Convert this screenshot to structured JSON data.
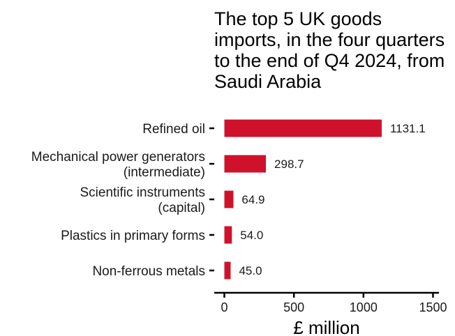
{
  "chart_data": {
    "type": "bar",
    "orientation": "horizontal",
    "title": "The top 5 UK goods imports, in the four quarters to the end of Q4 2024, from Saudi Arabia",
    "xlabel": "£ million",
    "ylabel": "",
    "categories": [
      [
        "Refined oil"
      ],
      [
        "Mechanical power generators",
        "(intermediate)"
      ],
      [
        "Scientific instruments",
        "(capital)"
      ],
      [
        "Plastics in primary forms"
      ],
      [
        "Non-ferrous metals"
      ]
    ],
    "values": [
      1131.1,
      298.7,
      64.9,
      54.0,
      45.0
    ],
    "value_labels": [
      "1131.1",
      "298.7",
      "64.9",
      "54.0",
      "45.0"
    ],
    "xlim": [
      0,
      1500
    ],
    "xticks": [
      0,
      500,
      1000,
      1500
    ],
    "xtick_labels": [
      "0",
      "500",
      "1000",
      "1500"
    ],
    "bar_color": "#d0112b",
    "grid": false,
    "legend": "none"
  }
}
